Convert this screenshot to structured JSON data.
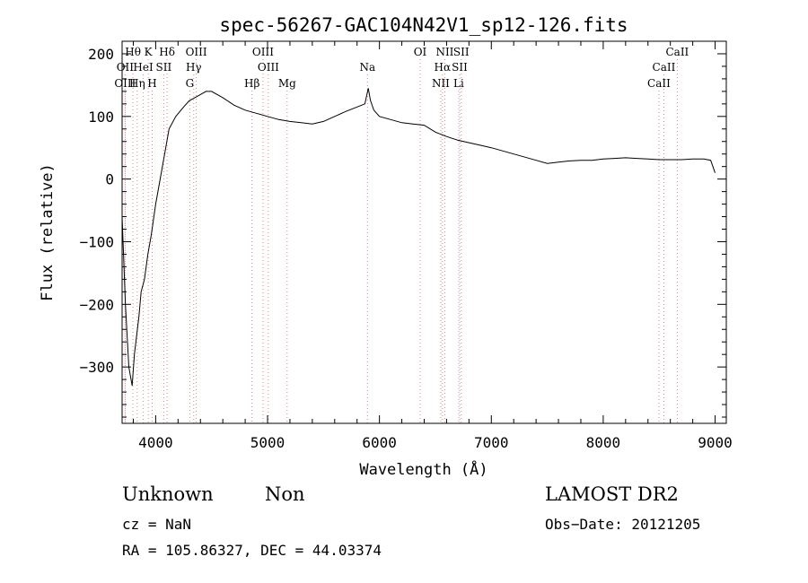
{
  "chart_data": {
    "type": "line",
    "title": "spec-56267-GAC104N42V1_sp12-126.fits",
    "xlabel": "Wavelength (Å)",
    "ylabel": "Flux (relative)",
    "xlim": [
      3700,
      9100
    ],
    "ylim": [
      -390,
      220
    ],
    "xticks": [
      4000,
      5000,
      6000,
      7000,
      8000,
      9000
    ],
    "yticks": [
      -300,
      -200,
      -100,
      0,
      100,
      200
    ],
    "xtick_labels": [
      "4000",
      "5000",
      "6000",
      "7000",
      "8000",
      "9000"
    ],
    "ytick_labels": [
      "−300",
      "−200",
      "−100",
      "0",
      "100",
      "200"
    ],
    "grid": false,
    "series": [
      {
        "x": [
          3700,
          3730,
          3760,
          3790,
          3810,
          3830,
          3850,
          3870,
          3900,
          3930,
          3960,
          4000,
          4040,
          4080,
          4120,
          4180,
          4250,
          4300,
          4350,
          4400,
          4450,
          4500,
          4600,
          4700,
          4800,
          4900,
          5000,
          5100,
          5200,
          5300,
          5400,
          5500,
          5600,
          5700,
          5800,
          5870,
          5900,
          5920,
          5950,
          6000,
          6100,
          6200,
          6300,
          6400,
          6500,
          6600,
          6700,
          6800,
          6900,
          7000,
          7100,
          7200,
          7300,
          7400,
          7500,
          7600,
          7700,
          7800,
          7900,
          8000,
          8100,
          8200,
          8300,
          8400,
          8500,
          8600,
          8700,
          8800,
          8900,
          8960,
          9000
        ],
        "y": [
          -60,
          -200,
          -300,
          -330,
          -280,
          -250,
          -220,
          -180,
          -160,
          -120,
          -90,
          -40,
          0,
          40,
          80,
          100,
          115,
          125,
          130,
          135,
          140,
          140,
          130,
          118,
          110,
          105,
          100,
          95,
          92,
          90,
          88,
          92,
          100,
          108,
          115,
          120,
          145,
          125,
          110,
          100,
          95,
          90,
          88,
          86,
          75,
          68,
          62,
          58,
          54,
          50,
          45,
          40,
          35,
          30,
          25,
          27,
          29,
          30,
          30,
          32,
          33,
          34,
          33,
          32,
          31,
          31,
          31,
          32,
          32,
          30,
          10
        ]
      }
    ],
    "lines": [
      {
        "label": "Hθ",
        "x": 3797,
        "row": 0
      },
      {
        "label": "K",
        "x": 3934,
        "row": 0
      },
      {
        "label": "Hδ",
        "x": 4102,
        "row": 0
      },
      {
        "label": "OIII",
        "x": 4363,
        "row": 0
      },
      {
        "label": "OIII",
        "x": 4959,
        "row": 0
      },
      {
        "label": "OI",
        "x": 6364,
        "row": 0
      },
      {
        "label": "NII",
        "x": 6584,
        "row": 0
      },
      {
        "label": "SII",
        "x": 6731,
        "row": 0
      },
      {
        "label": "CaII",
        "x": 8662,
        "row": 0
      },
      {
        "label": "OII",
        "x": 3727,
        "row": 1
      },
      {
        "label": "HeI",
        "x": 3889,
        "row": 1
      },
      {
        "label": "SII",
        "x": 4072,
        "row": 1
      },
      {
        "label": "Hγ",
        "x": 4340,
        "row": 1
      },
      {
        "label": "OIII",
        "x": 5007,
        "row": 1
      },
      {
        "label": "Na",
        "x": 5893,
        "row": 1
      },
      {
        "label": "Hα",
        "x": 6563,
        "row": 1
      },
      {
        "label": "SII",
        "x": 6717,
        "row": 1
      },
      {
        "label": "CaII",
        "x": 8542,
        "row": 1
      },
      {
        "label": "OIII",
        "x": 3727,
        "row": 2
      },
      {
        "label": "Hη",
        "x": 3835,
        "row": 2
      },
      {
        "label": "H",
        "x": 3969,
        "row": 2
      },
      {
        "label": "G",
        "x": 4305,
        "row": 2
      },
      {
        "label": "Hβ",
        "x": 4861,
        "row": 2
      },
      {
        "label": "Mg",
        "x": 5175,
        "row": 2
      },
      {
        "label": "NII",
        "x": 6548,
        "row": 2
      },
      {
        "label": "Li",
        "x": 6708,
        "row": 2
      },
      {
        "label": "CaII",
        "x": 8498,
        "row": 2
      }
    ]
  },
  "info": {
    "object_class": "Unknown",
    "subclass": "Non",
    "survey": "LAMOST DR2",
    "cz": "cz = NaN",
    "obs_date": "Obs−Date: 20121205",
    "coords": "RA = 105.86327, DEC =  44.03374"
  }
}
